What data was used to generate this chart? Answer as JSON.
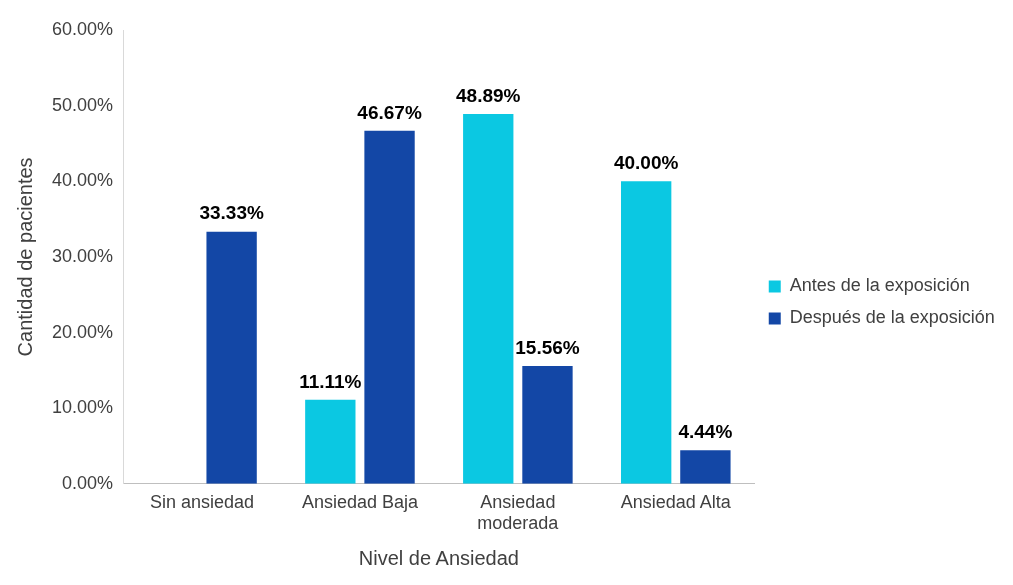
{
  "chart_data": {
    "type": "bar",
    "xlabel": "Nivel de Ansiedad",
    "ylabel": "Cantidad de pacientes",
    "categories": [
      "Sin ansiedad",
      "Ansiedad Baja",
      "Ansiedad moderada",
      "Ansiedad Alta"
    ],
    "series": [
      {
        "name": "Antes de la exposición",
        "color": "#0bc8e2",
        "values": [
          0,
          11.11,
          48.89,
          40.0
        ],
        "value_labels": [
          null,
          "11.11%",
          "48.89%",
          "40.00%"
        ]
      },
      {
        "name": "Después de la exposición",
        "color": "#1347a6",
        "values": [
          33.33,
          46.67,
          15.56,
          4.44
        ],
        "value_labels": [
          "33.33%",
          "46.67%",
          "15.56%",
          "4.44%"
        ]
      }
    ],
    "ylim": [
      0,
      60
    ],
    "yticks": [
      {
        "value": 0,
        "label": "0.00%"
      },
      {
        "value": 10,
        "label": "10.00%"
      },
      {
        "value": 20,
        "label": "20.00%"
      },
      {
        "value": 30,
        "label": "30.00%"
      },
      {
        "value": 40,
        "label": "40.00%"
      },
      {
        "value": 50,
        "label": "50.00%"
      },
      {
        "value": 60,
        "label": "60.00%"
      }
    ],
    "grid": false,
    "legend": "right"
  }
}
